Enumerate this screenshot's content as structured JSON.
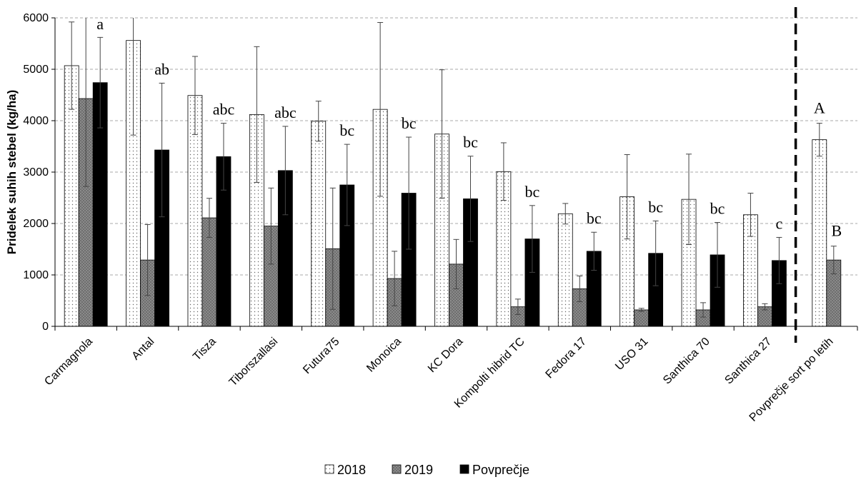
{
  "chart_data": {
    "type": "bar",
    "ylabel": "Pridelek suhih stebel (kg/ha)",
    "xlabel": "",
    "ylim": [
      0,
      6000
    ],
    "yticks": [
      0,
      1000,
      2000,
      3000,
      4000,
      5000,
      6000
    ],
    "ytick_labels": [
      "0",
      "1000",
      "2000",
      "3000",
      "4000",
      "5000",
      "6000"
    ],
    "grid": "horizontal dashed",
    "categories": [
      "Carmagnola",
      "Antal",
      "Tisza",
      "Tiborszallasi",
      "Futura75",
      "Monoica",
      "KC Dora",
      "Kompolti hibrid TC",
      "Fedora 17",
      "USO 31",
      "Santhica 70",
      "Santhica 27",
      "Povprečje sort po letih"
    ],
    "series": [
      {
        "name": "2018",
        "pattern": "dotted",
        "color": "#ffffff",
        "values": [
          5070,
          5560,
          4490,
          4120,
          3990,
          4220,
          3740,
          3010,
          2190,
          2520,
          2470,
          2170,
          3630
        ],
        "errors": [
          850,
          1840,
          760,
          1320,
          390,
          1690,
          1250,
          560,
          200,
          820,
          880,
          420,
          320
        ]
      },
      {
        "name": "2019",
        "pattern": "crosshatch",
        "color": "#888888",
        "values": [
          4430,
          1290,
          2110,
          1950,
          1510,
          930,
          1210,
          380,
          730,
          320,
          320,
          380,
          1290
        ],
        "errors": [
          1710,
          690,
          380,
          740,
          1180,
          530,
          480,
          150,
          250,
          30,
          140,
          60,
          270
        ]
      },
      {
        "name": "Povprečje",
        "pattern": "solid",
        "color": "#000000",
        "values": [
          4740,
          3430,
          3300,
          3030,
          2750,
          2590,
          2480,
          1700,
          1460,
          1420,
          1390,
          1280,
          null
        ],
        "errors": [
          880,
          1300,
          650,
          860,
          790,
          1090,
          830,
          650,
          370,
          630,
          630,
          450,
          null
        ]
      }
    ],
    "significance_letters": [
      "a",
      "ab",
      "abc",
      "abc",
      "bc",
      "bc",
      "bc",
      "bc",
      "bc",
      "bc",
      "bc",
      "c"
    ],
    "year_letters": [
      "A",
      "B"
    ],
    "divider_before_category": "Povprečje sort po letih",
    "legend_position": "bottom"
  }
}
